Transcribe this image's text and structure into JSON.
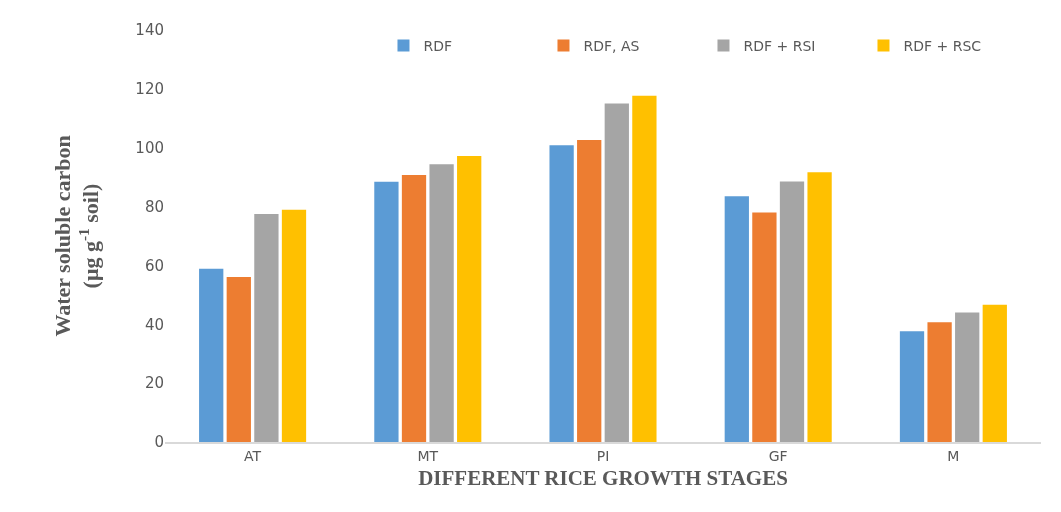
{
  "chart_data": {
    "type": "bar",
    "categories": [
      "AT",
      "MT",
      "PI",
      "GF",
      "M"
    ],
    "series": [
      {
        "name": "RDF",
        "color": "#5b9bd5",
        "values": [
          58.9,
          88.4,
          100.8,
          83.5,
          37.6
        ]
      },
      {
        "name": "RDF, AS",
        "color": "#ed7d31",
        "values": [
          56.1,
          90.7,
          102.6,
          78,
          40.7
        ]
      },
      {
        "name": "RDF + RSI",
        "color": "#a5a5a5",
        "values": [
          77.5,
          94.4,
          115,
          88.5,
          44
        ]
      },
      {
        "name": "RDF + RSC",
        "color": "#ffc000",
        "values": [
          78.9,
          97.2,
          117.7,
          91.7,
          46.6
        ]
      }
    ],
    "xlabel": "DIFFERENT RICE GROWTH STAGES",
    "ylabel": "Water soluble carbon\n(μg g$^{-1}$ soil)",
    "ylim": [
      0,
      140
    ],
    "yticks": [
      0,
      20,
      40,
      60,
      80,
      100,
      120,
      140
    ],
    "grid": false,
    "legend": "top right"
  }
}
